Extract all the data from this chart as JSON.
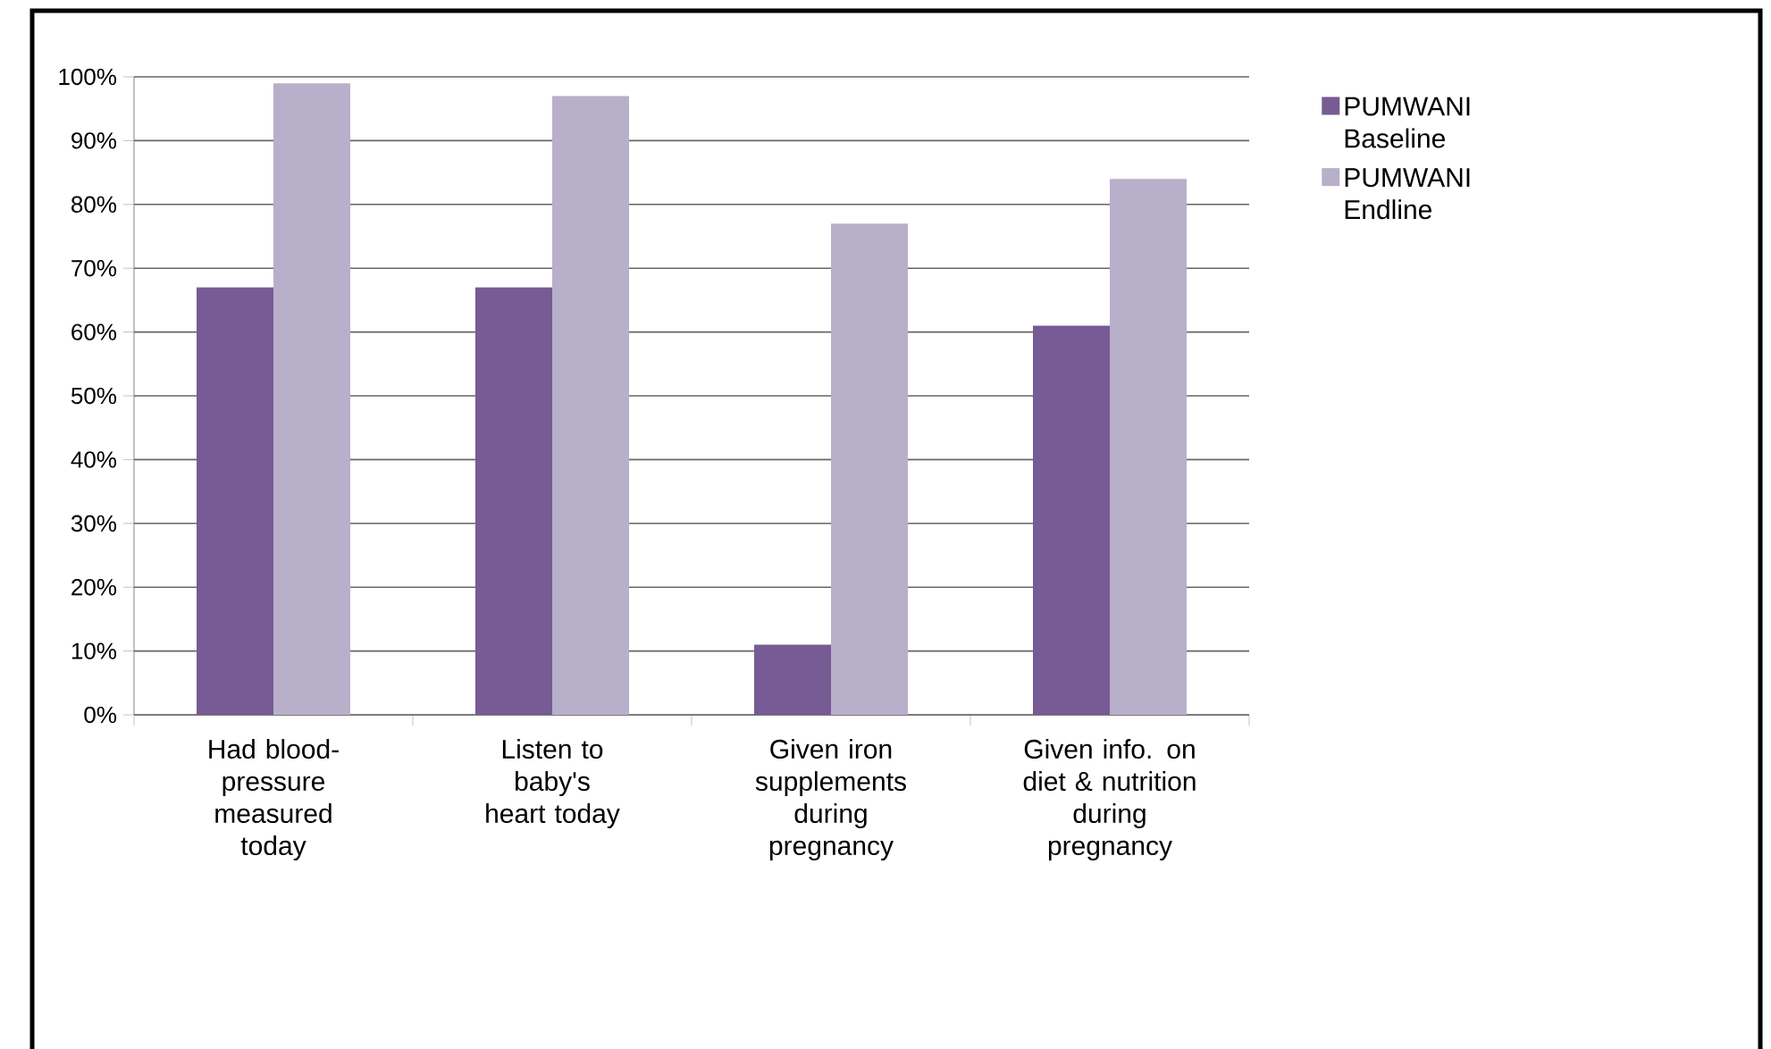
{
  "chart_data": {
    "type": "bar",
    "categories": [
      "Had blood-pressure measured today",
      "Listen to baby's heart today",
      "Given iron supplements during pregnancy",
      "Given info. on diet & nutrition during pregnancy"
    ],
    "series": [
      {
        "name": "PUMWANI Baseline",
        "color": "#765b94",
        "values": [
          67,
          67,
          11,
          61
        ]
      },
      {
        "name": "PUMWANI Endline",
        "color": "#b8afca",
        "values": [
          99,
          97,
          77,
          84
        ]
      }
    ],
    "ylim": [
      0,
      100
    ],
    "yticks": [
      {
        "value": 0,
        "label": "0%"
      },
      {
        "value": 10,
        "label": "10%"
      },
      {
        "value": 20,
        "label": "20%"
      },
      {
        "value": 30,
        "label": "30%"
      },
      {
        "value": 40,
        "label": "40%"
      },
      {
        "value": 50,
        "label": "50%"
      },
      {
        "value": 60,
        "label": "60%"
      },
      {
        "value": 70,
        "label": "70%"
      },
      {
        "value": 80,
        "label": "80%"
      },
      {
        "value": 90,
        "label": "90%"
      },
      {
        "value": 100,
        "label": "100%"
      }
    ],
    "grid": "y",
    "legend": "right"
  }
}
